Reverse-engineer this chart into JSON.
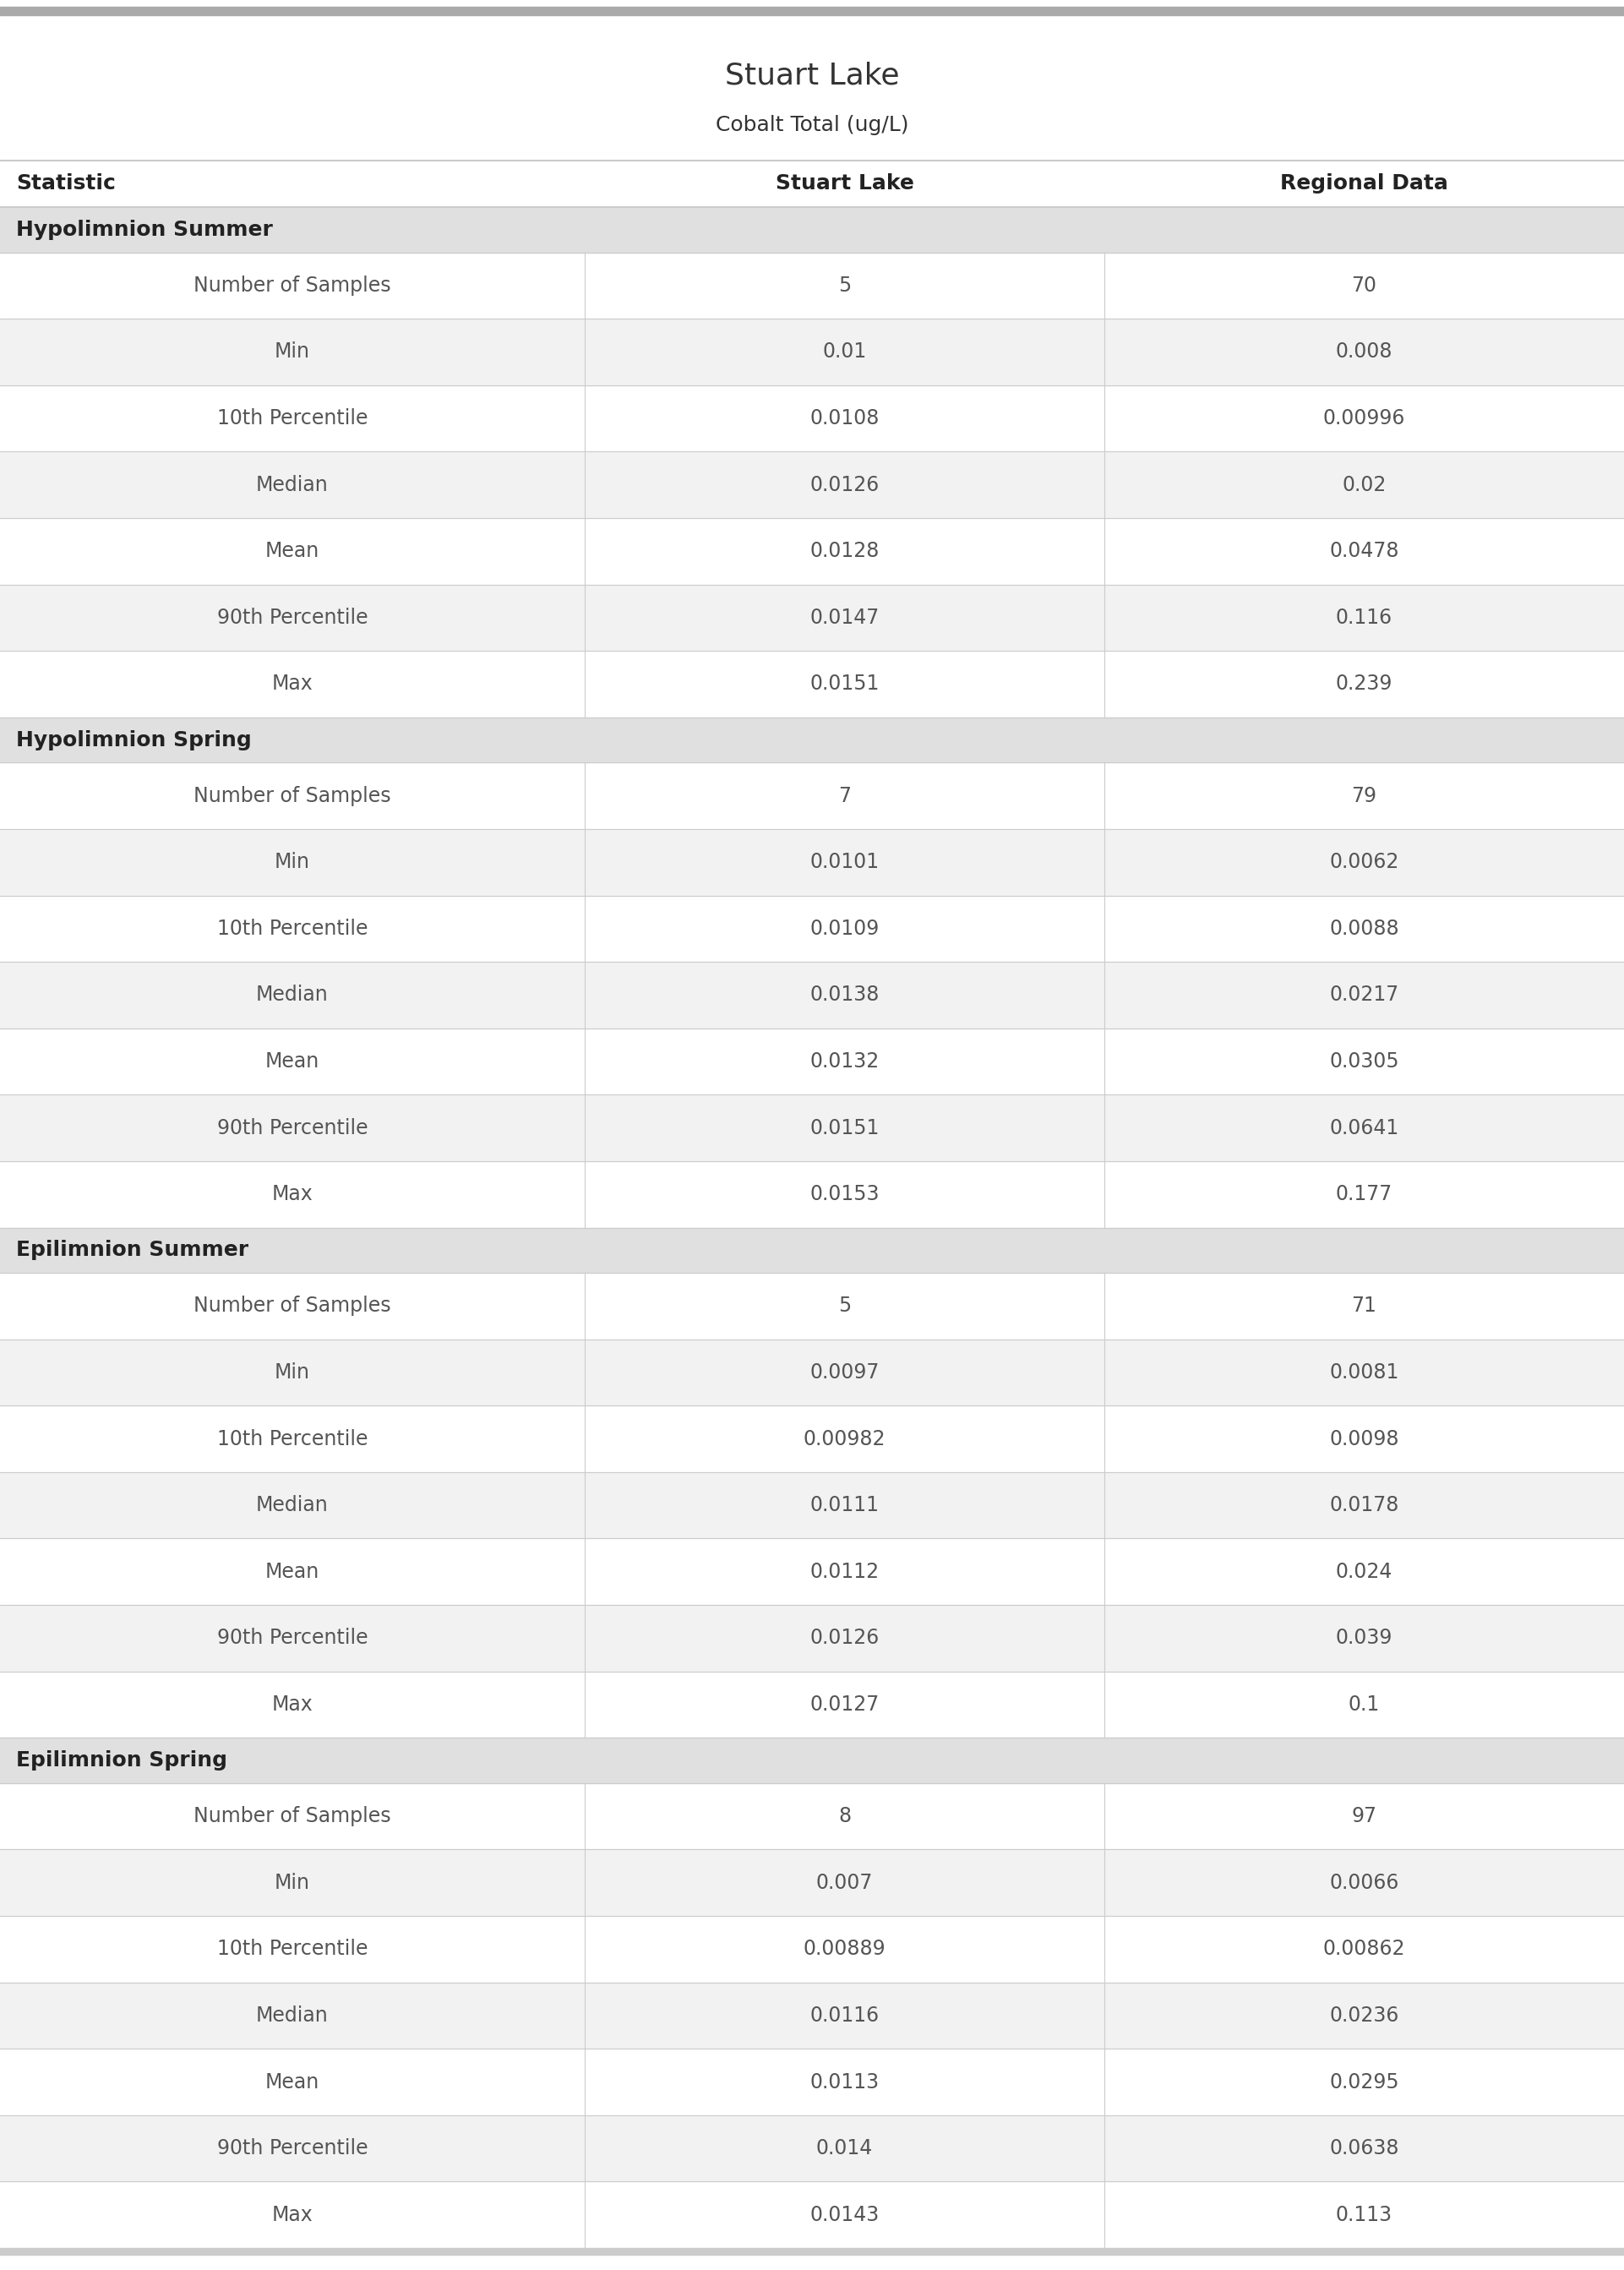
{
  "title": "Stuart Lake",
  "subtitle": "Cobalt Total (ug/L)",
  "col_headers": [
    "Statistic",
    "Stuart Lake",
    "Regional Data"
  ],
  "sections": [
    {
      "name": "Hypolimnion Summer",
      "rows": [
        [
          "Number of Samples",
          "5",
          "70"
        ],
        [
          "Min",
          "0.01",
          "0.008"
        ],
        [
          "10th Percentile",
          "0.0108",
          "0.00996"
        ],
        [
          "Median",
          "0.0126",
          "0.02"
        ],
        [
          "Mean",
          "0.0128",
          "0.0478"
        ],
        [
          "90th Percentile",
          "0.0147",
          "0.116"
        ],
        [
          "Max",
          "0.0151",
          "0.239"
        ]
      ]
    },
    {
      "name": "Hypolimnion Spring",
      "rows": [
        [
          "Number of Samples",
          "7",
          "79"
        ],
        [
          "Min",
          "0.0101",
          "0.0062"
        ],
        [
          "10th Percentile",
          "0.0109",
          "0.0088"
        ],
        [
          "Median",
          "0.0138",
          "0.0217"
        ],
        [
          "Mean",
          "0.0132",
          "0.0305"
        ],
        [
          "90th Percentile",
          "0.0151",
          "0.0641"
        ],
        [
          "Max",
          "0.0153",
          "0.177"
        ]
      ]
    },
    {
      "name": "Epilimnion Summer",
      "rows": [
        [
          "Number of Samples",
          "5",
          "71"
        ],
        [
          "Min",
          "0.0097",
          "0.0081"
        ],
        [
          "10th Percentile",
          "0.00982",
          "0.0098"
        ],
        [
          "Median",
          "0.0111",
          "0.0178"
        ],
        [
          "Mean",
          "0.0112",
          "0.024"
        ],
        [
          "90th Percentile",
          "0.0126",
          "0.039"
        ],
        [
          "Max",
          "0.0127",
          "0.1"
        ]
      ]
    },
    {
      "name": "Epilimnion Spring",
      "rows": [
        [
          "Number of Samples",
          "8",
          "97"
        ],
        [
          "Min",
          "0.007",
          "0.0066"
        ],
        [
          "10th Percentile",
          "0.00889",
          "0.00862"
        ],
        [
          "Median",
          "0.0116",
          "0.0236"
        ],
        [
          "Mean",
          "0.0113",
          "0.0295"
        ],
        [
          "90th Percentile",
          "0.014",
          "0.0638"
        ],
        [
          "Max",
          "0.0143",
          "0.113"
        ]
      ]
    }
  ],
  "title_fontsize": 26,
  "subtitle_fontsize": 18,
  "header_fontsize": 18,
  "section_fontsize": 18,
  "cell_fontsize": 17,
  "bg_color": "#ffffff",
  "top_bar_color": "#aaaaaa",
  "section_bg": "#e0e0e0",
  "alt_row_bg": "#f2f2f2",
  "white_row_bg": "#ffffff",
  "text_color": "#555555",
  "header_text_color": "#222222",
  "section_text_color": "#222222",
  "title_color": "#333333",
  "divider_color": "#cccccc",
  "bottom_bar_color": "#cccccc",
  "col_split1": 0.36,
  "col_split2": 0.68
}
